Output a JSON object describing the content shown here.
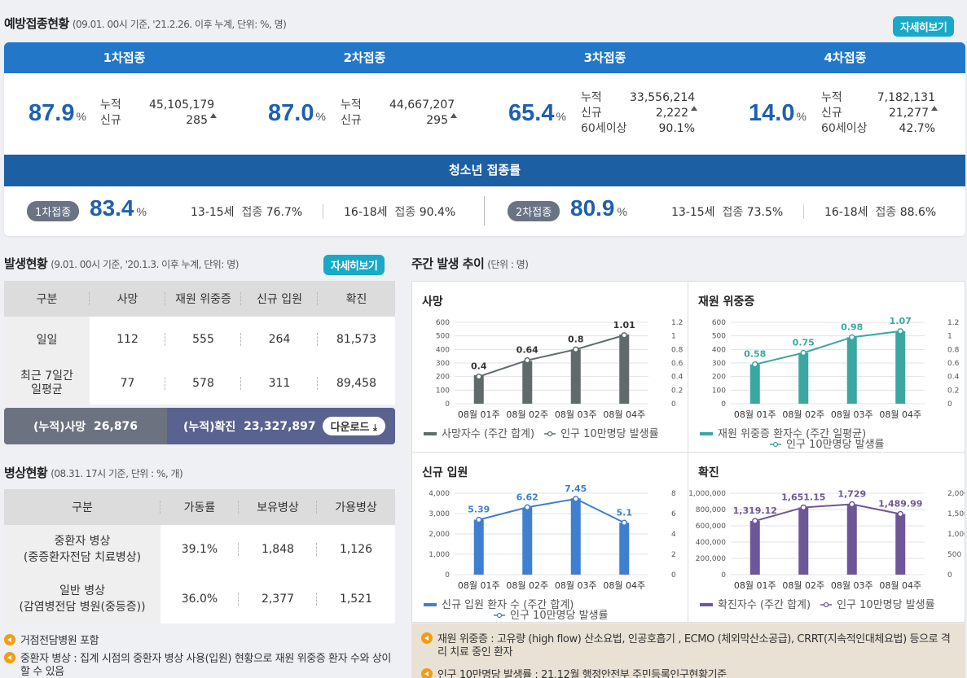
{
  "vaccination": {
    "title": "예방접종현황",
    "subtitle": "(09.01. 00시 기준, '21.2.26. 이후 누계, 단위: %, 명)",
    "more_label": "자세히보기",
    "doses": [
      {
        "name": "1차접종",
        "pct": "87.9",
        "unit": "%",
        "rows": [
          {
            "k": "누적",
            "v": "45,105,179",
            "up": false
          },
          {
            "k": "신규",
            "v": "285",
            "up": true
          }
        ]
      },
      {
        "name": "2차접종",
        "pct": "87.0",
        "unit": "%",
        "rows": [
          {
            "k": "누적",
            "v": "44,667,207",
            "up": false
          },
          {
            "k": "신규",
            "v": "295",
            "up": true
          }
        ]
      },
      {
        "name": "3차접종",
        "pct": "65.4",
        "unit": "%",
        "rows": [
          {
            "k": "누적",
            "v": "33,556,214",
            "up": false
          },
          {
            "k": "신규",
            "v": "2,222",
            "up": true
          },
          {
            "k": "60세이상",
            "v": "90.1%",
            "up": false
          }
        ]
      },
      {
        "name": "4차접종",
        "pct": "14.0",
        "unit": "%",
        "rows": [
          {
            "k": "누적",
            "v": "7,182,131",
            "up": false
          },
          {
            "k": "신규",
            "v": "21,277",
            "up": true
          },
          {
            "k": "60세이상",
            "v": "42.7%",
            "up": false
          }
        ]
      }
    ],
    "teen": {
      "title": "청소년 접종률",
      "first": {
        "pill": "1차접종",
        "pct": "83.4",
        "unit": "%",
        "a_age": "13-15세",
        "a_label": "접종",
        "a_val": "76.7%",
        "b_age": "16-18세",
        "b_label": "접종",
        "b_val": "90.4%"
      },
      "second": {
        "pill": "2차접종",
        "pct": "80.9",
        "unit": "%",
        "a_age": "13-15세",
        "a_label": "접종",
        "a_val": "73.5%",
        "b_age": "16-18세",
        "b_label": "접종",
        "b_val": "88.6%"
      }
    }
  },
  "occurrence": {
    "title": "발생현황",
    "subtitle": "(9.01. 00시 기준, '20.1.3. 이후 누계, 단위: 명)",
    "more_label": "자세히보기",
    "headers": [
      "구분",
      "사망",
      "재원 위중증",
      "신규 입원",
      "확진"
    ],
    "rows": [
      {
        "label": "일일",
        "values": [
          "112",
          "555",
          "264",
          "81,573"
        ]
      },
      {
        "label": "최근 7일간 일평균",
        "values": [
          "77",
          "578",
          "311",
          "89,458"
        ]
      }
    ],
    "cum_death_label": "(누적)사망",
    "cum_death_value": "26,876",
    "cum_confirmed_label": "(누적)확진",
    "cum_confirmed_value": "23,327,897",
    "download_label": "다운로드"
  },
  "beds": {
    "title": "병상현황",
    "subtitle": "(08.31. 17시 기준, 단위 : %, 개)",
    "headers": [
      "구분",
      "가동률",
      "보유병상",
      "가용병상"
    ],
    "rows": [
      {
        "label1": "중환자 병상",
        "label2": "(중증환자전담 치료병상)",
        "values": [
          "39.1%",
          "1,848",
          "1,126"
        ]
      },
      {
        "label1": "일반 병상",
        "label2": "(감염병전담 병원(중등증))",
        "values": [
          "36.0%",
          "2,377",
          "1,521"
        ]
      }
    ],
    "notes": [
      "거점전담병원 포함",
      "중환자 병상 : 집계 시점의 중환자 병상 사용(입원) 현황으로 재원 위중증 환자 수와 상이할 수 있음"
    ]
  },
  "weekly": {
    "title": "주간 발생 추이",
    "subtitle": "(단위 : 명)",
    "notes": [
      "재원 위중증 : 고유량 (high flow) 산소요법, 인공호흡기 , ECMO (체외막산소공급), CRRT(지속적인대체요법) 등으로 격리 치료 중인 환자",
      "인구 10만명당 발생률 : 21.12월 행정안전부 주민등록인구현황기준"
    ]
  },
  "chart_data": [
    {
      "type": "bar",
      "title": "사망",
      "categories": [
        "08월 01주",
        "08월 02주",
        "08월 03주",
        "08월 04주"
      ],
      "bar_color": "#5f6b6b",
      "line_color": "#5f6b6b",
      "left_axis": {
        "ticks": [
          "0",
          "100",
          "200",
          "300",
          "400",
          "500",
          "600"
        ],
        "max": 600
      },
      "right_axis": {
        "ticks": [
          "0",
          "0.2",
          "0.4",
          "0.6",
          "0.8",
          "1",
          "1.2"
        ],
        "max": 1.2
      },
      "series": [
        {
          "name": "사망자수 (주간 합계)",
          "axis": "left",
          "values": [
            210,
            315,
            400,
            510
          ]
        },
        {
          "name": "인구 10만명당 발생률",
          "axis": "right",
          "values": [
            0.4,
            0.64,
            0.8,
            1.01
          ],
          "labels": [
            "0.4",
            "0.64",
            "0.8",
            "1.01"
          ]
        }
      ]
    },
    {
      "type": "bar",
      "title": "재원 위중증",
      "categories": [
        "08월 01주",
        "08월 02주",
        "08월 03주",
        "08월 04주"
      ],
      "bar_color": "#3aa7a3",
      "line_color": "#3aa7a3",
      "left_axis": {
        "ticks": [
          "0",
          "100",
          "200",
          "300",
          "400",
          "500",
          "600"
        ],
        "max": 600
      },
      "right_axis": {
        "ticks": [
          "0",
          "0.2",
          "0.4",
          "0.6",
          "0.8",
          "1",
          "1.2"
        ],
        "max": 1.2
      },
      "series": [
        {
          "name": "재원 위중증 환자수 (주간 일평균)",
          "axis": "left",
          "values": [
            290,
            375,
            490,
            535
          ]
        },
        {
          "name": "인구 10만명당 발생률",
          "axis": "right",
          "values": [
            0.58,
            0.75,
            0.98,
            1.07
          ],
          "labels": [
            "0.58",
            "0.75",
            "0.98",
            "1.07"
          ]
        }
      ]
    },
    {
      "type": "bar",
      "title": "신규 입원",
      "categories": [
        "08월 01주",
        "08월 02주",
        "08월 03주",
        "08월 04주"
      ],
      "bar_color": "#3f7fd0",
      "line_color": "#3f7fd0",
      "left_axis": {
        "ticks": [
          "0",
          "1,000",
          "2,000",
          "3,000",
          "4,000"
        ],
        "max": 4000
      },
      "right_axis": {
        "ticks": [
          "0",
          "2",
          "4",
          "6",
          "8"
        ],
        "max": 8
      },
      "series": [
        {
          "name": "신규 입원 환자 수 (주간 합계)",
          "axis": "left",
          "values": [
            2700,
            3300,
            3750,
            2550
          ]
        },
        {
          "name": "인구 10만명당 발생률",
          "axis": "right",
          "values": [
            5.39,
            6.62,
            7.45,
            5.1
          ],
          "labels": [
            "5.39",
            "6.62",
            "7.45",
            "5.1"
          ]
        }
      ]
    },
    {
      "type": "bar",
      "title": "확진",
      "categories": [
        "08월 01주",
        "08월 02주",
        "08월 03주",
        "08월 04주"
      ],
      "bar_color": "#6e5796",
      "line_color": "#6e5796",
      "left_axis": {
        "ticks": [
          "0",
          "200,000",
          "400,000",
          "600,000",
          "800,000",
          "1,000,000"
        ],
        "max": 1000000
      },
      "right_axis": {
        "ticks": [
          "0",
          "500",
          "1,000",
          "1,500",
          "2,000"
        ],
        "max": 2000
      },
      "series": [
        {
          "name": "확진자수 (주간 합계)",
          "axis": "left",
          "values": [
            660000,
            825000,
            865000,
            745000
          ]
        },
        {
          "name": "인구 10만명당 발생률",
          "axis": "right",
          "values": [
            1319.12,
            1651.15,
            1729,
            1489.99
          ],
          "labels": [
            "1,319.12",
            "1,651.15",
            "1,729",
            "1,489.99"
          ]
        }
      ]
    }
  ]
}
